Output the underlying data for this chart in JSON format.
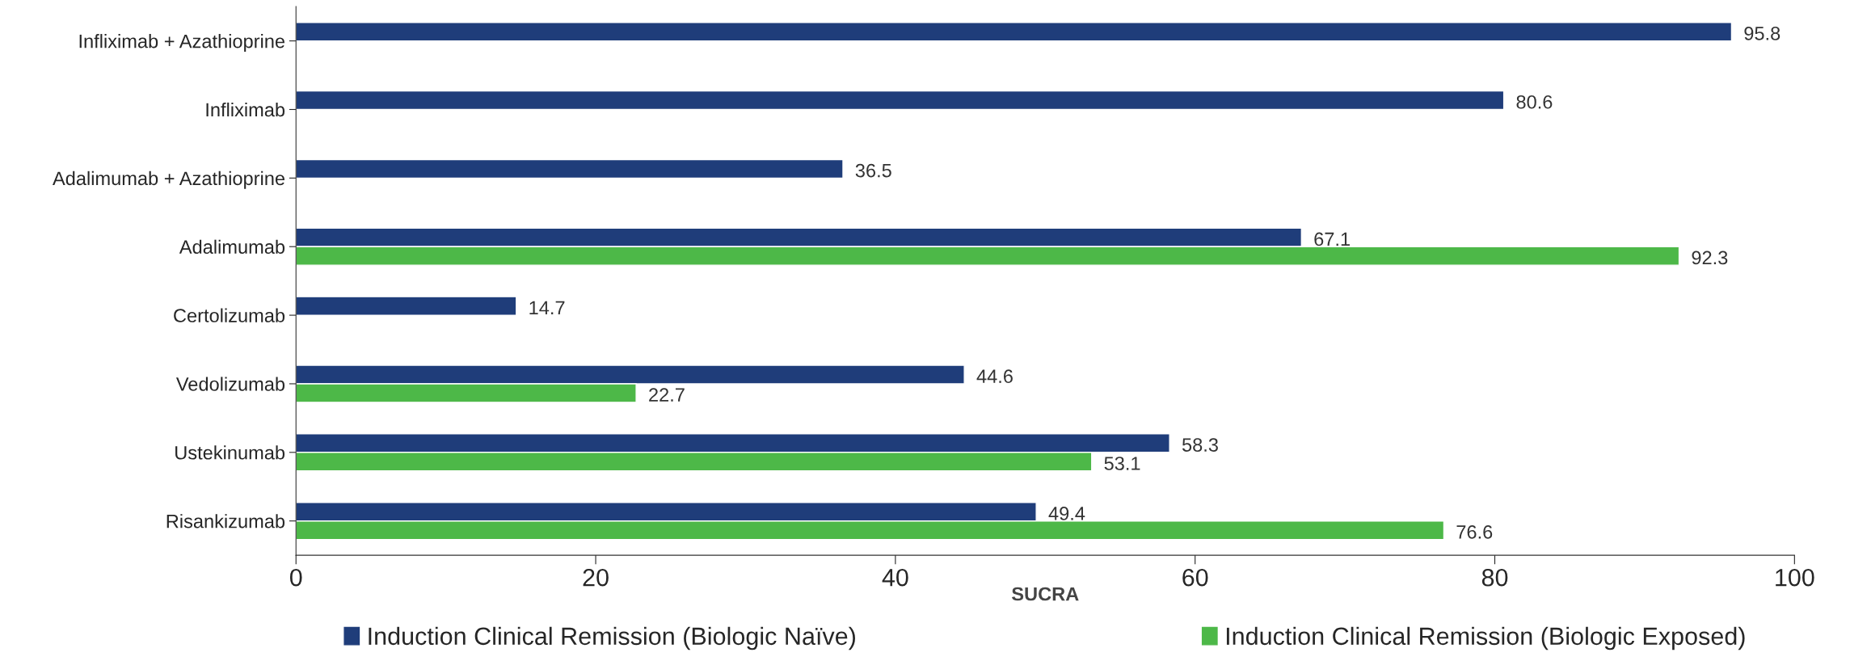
{
  "chart_data": {
    "type": "bar",
    "orientation": "horizontal",
    "xlabel": "SUCRA",
    "categories": [
      "Infliximab + Azathioprine",
      "Infliximab",
      "Adalimumab + Azathioprine",
      "Adalimumab",
      "Certolizumab",
      "Vedolizumab",
      "Ustekinumab",
      "Risankizumab"
    ],
    "series": [
      {
        "name": "Induction Clinical Remission (Biologic Naïve)",
        "color": "#1f3d7a",
        "values": [
          95.8,
          80.6,
          36.5,
          67.1,
          14.7,
          44.6,
          58.3,
          49.4
        ]
      },
      {
        "name": "Induction Clinical Remission (Biologic Exposed)",
        "color": "#4db848",
        "values": [
          null,
          null,
          null,
          92.3,
          null,
          22.7,
          53.1,
          76.6
        ]
      }
    ],
    "xlim": [
      0,
      100
    ],
    "xticks": [
      0,
      20,
      40,
      60,
      80,
      100
    ],
    "data_labels": true,
    "grid": false,
    "legend": "bottom"
  }
}
